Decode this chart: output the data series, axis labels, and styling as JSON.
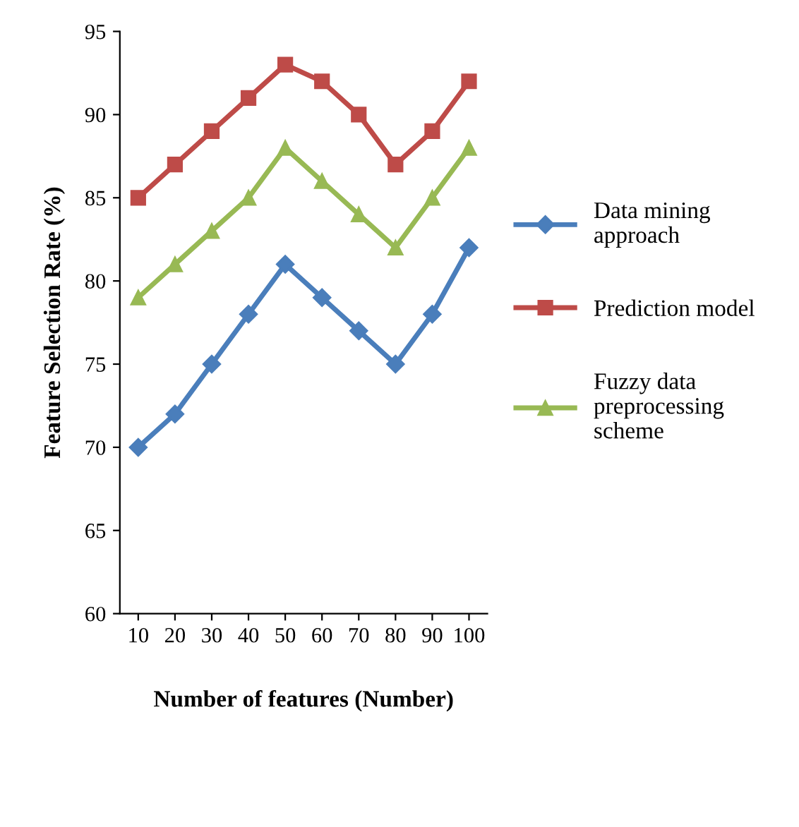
{
  "chart_data": {
    "type": "line",
    "xlabel": "Number of features (Number)",
    "ylabel": "Feature Selection Rate (%)",
    "categories": [
      "10",
      "20",
      "30",
      "40",
      "50",
      "60",
      "70",
      "80",
      "90",
      "100"
    ],
    "ylim": [
      60,
      95
    ],
    "yticks": [
      60,
      65,
      70,
      75,
      80,
      85,
      90,
      95
    ],
    "grid": false,
    "legend": "right",
    "line_style": "solid",
    "series": [
      {
        "name": "Data mining approach",
        "color": "#4a7ebb",
        "marker": "diamond",
        "values": [
          70,
          72,
          75,
          78,
          81,
          79,
          77,
          75,
          78,
          82
        ]
      },
      {
        "name": "Prediction model",
        "color": "#be4b48",
        "marker": "square",
        "values": [
          85,
          87,
          89,
          91,
          93,
          92,
          90,
          87,
          89,
          92
        ]
      },
      {
        "name": "Fuzzy data preprocessing scheme",
        "color": "#98b954",
        "marker": "triangle",
        "values": [
          79,
          81,
          83,
          85,
          88,
          86,
          84,
          82,
          85,
          88
        ]
      }
    ]
  }
}
